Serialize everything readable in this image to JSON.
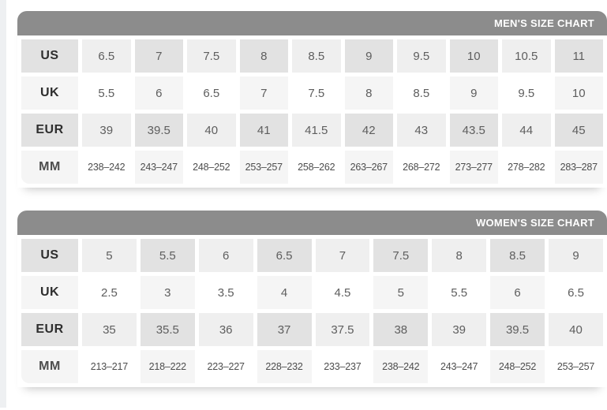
{
  "colors": {
    "header_bg": "#8c8c8c",
    "header_text": "#ffffff",
    "cell_dark": "#e2e2e2",
    "cell_light": "#efefef",
    "cell_faint": "#f5f5f5",
    "cell_white": "#ffffff",
    "label_text": "#2e2e2e",
    "value_text": "#5e5e5e"
  },
  "chart_data": [
    {
      "type": "table",
      "title": "MEN'S SIZE CHART",
      "title_position": "right",
      "row_labels": [
        "US",
        "UK",
        "EUR",
        "MM"
      ],
      "rows": [
        {
          "label": "US",
          "values": [
            "6.5",
            "7",
            "7.5",
            "8",
            "8.5",
            "9",
            "9.5",
            "10",
            "10.5",
            "11"
          ]
        },
        {
          "label": "UK",
          "values": [
            "5.5",
            "6",
            "6.5",
            "7",
            "7.5",
            "8",
            "8.5",
            "9",
            "9.5",
            "10"
          ]
        },
        {
          "label": "EUR",
          "values": [
            "39",
            "39.5",
            "40",
            "41",
            "41.5",
            "42",
            "43",
            "43.5",
            "44",
            "45"
          ]
        },
        {
          "label": "MM",
          "values": [
            "238–242",
            "243–247",
            "248–252",
            "253–257",
            "258–262",
            "263–267",
            "268–272",
            "273–277",
            "278–282",
            "283–287"
          ]
        }
      ]
    },
    {
      "type": "table",
      "title": "WOMEN'S SIZE CHART",
      "title_position": "right",
      "row_labels": [
        "US",
        "UK",
        "EUR",
        "MM"
      ],
      "rows": [
        {
          "label": "US",
          "values": [
            "5",
            "5.5",
            "6",
            "6.5",
            "7",
            "7.5",
            "8",
            "8.5",
            "9"
          ]
        },
        {
          "label": "UK",
          "values": [
            "2.5",
            "3",
            "3.5",
            "4",
            "4.5",
            "5",
            "5.5",
            "6",
            "6.5"
          ]
        },
        {
          "label": "EUR",
          "values": [
            "35",
            "35.5",
            "36",
            "37",
            "37.5",
            "38",
            "39",
            "39.5",
            "40"
          ]
        },
        {
          "label": "MM",
          "values": [
            "213–217",
            "218–222",
            "223–227",
            "228–232",
            "233–237",
            "238–242",
            "243–247",
            "248–252",
            "253–257"
          ]
        }
      ]
    }
  ]
}
